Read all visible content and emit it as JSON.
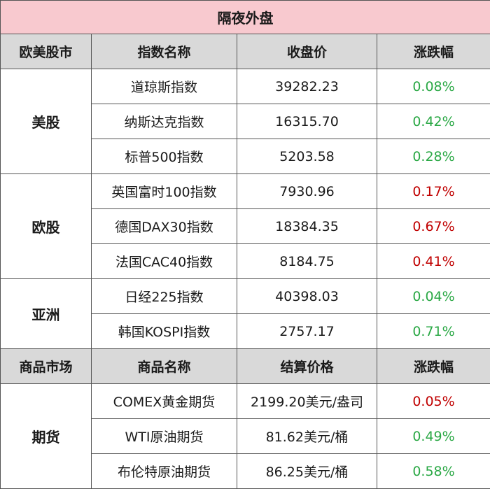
{
  "title": "隔夜外盘",
  "index_header": [
    "欧美股市",
    "指数名称",
    "收盘价",
    "涨跌幅"
  ],
  "commodity_header": [
    "商品市场",
    "商品名称",
    "结算价格",
    "涨跌幅"
  ],
  "colors": {
    "title_bg": "#f8c9cf",
    "header_bg": "#d9d9d9",
    "rise": "#c00000",
    "fall": "#2aa845"
  },
  "groups": [
    {
      "name": "美股",
      "rows": [
        {
          "name": "道琼斯指数",
          "price": "39282.23",
          "change": "0.08%",
          "trend": "down"
        },
        {
          "name": "纳斯达克指数",
          "price": "16315.70",
          "change": "0.42%",
          "trend": "down"
        },
        {
          "name": "标普500指数",
          "price": "5203.58",
          "change": "0.28%",
          "trend": "down"
        }
      ]
    },
    {
      "name": "欧股",
      "rows": [
        {
          "name": "英国富时100指数",
          "price": "7930.96",
          "change": "0.17%",
          "trend": "up"
        },
        {
          "name": "德国DAX30指数",
          "price": "18384.35",
          "change": "0.67%",
          "trend": "up"
        },
        {
          "name": "法国CAC40指数",
          "price": "8184.75",
          "change": "0.41%",
          "trend": "up"
        }
      ]
    },
    {
      "name": "亚洲",
      "rows": [
        {
          "name": "日经225指数",
          "price": "40398.03",
          "change": "0.04%",
          "trend": "down"
        },
        {
          "name": "韩国KOSPI指数",
          "price": "2757.17",
          "change": "0.71%",
          "trend": "down"
        }
      ]
    },
    {
      "name": "期货",
      "rows": [
        {
          "name": "COMEX黄金期货",
          "price": "2199.20美元/盎司",
          "change": "0.05%",
          "trend": "up"
        },
        {
          "name": "WTI原油期货",
          "price": "81.62美元/桶",
          "change": "0.49%",
          "trend": "down"
        },
        {
          "name": "布伦特原油期货",
          "price": "86.25美元/桶",
          "change": "0.58%",
          "trend": "down"
        }
      ]
    }
  ]
}
